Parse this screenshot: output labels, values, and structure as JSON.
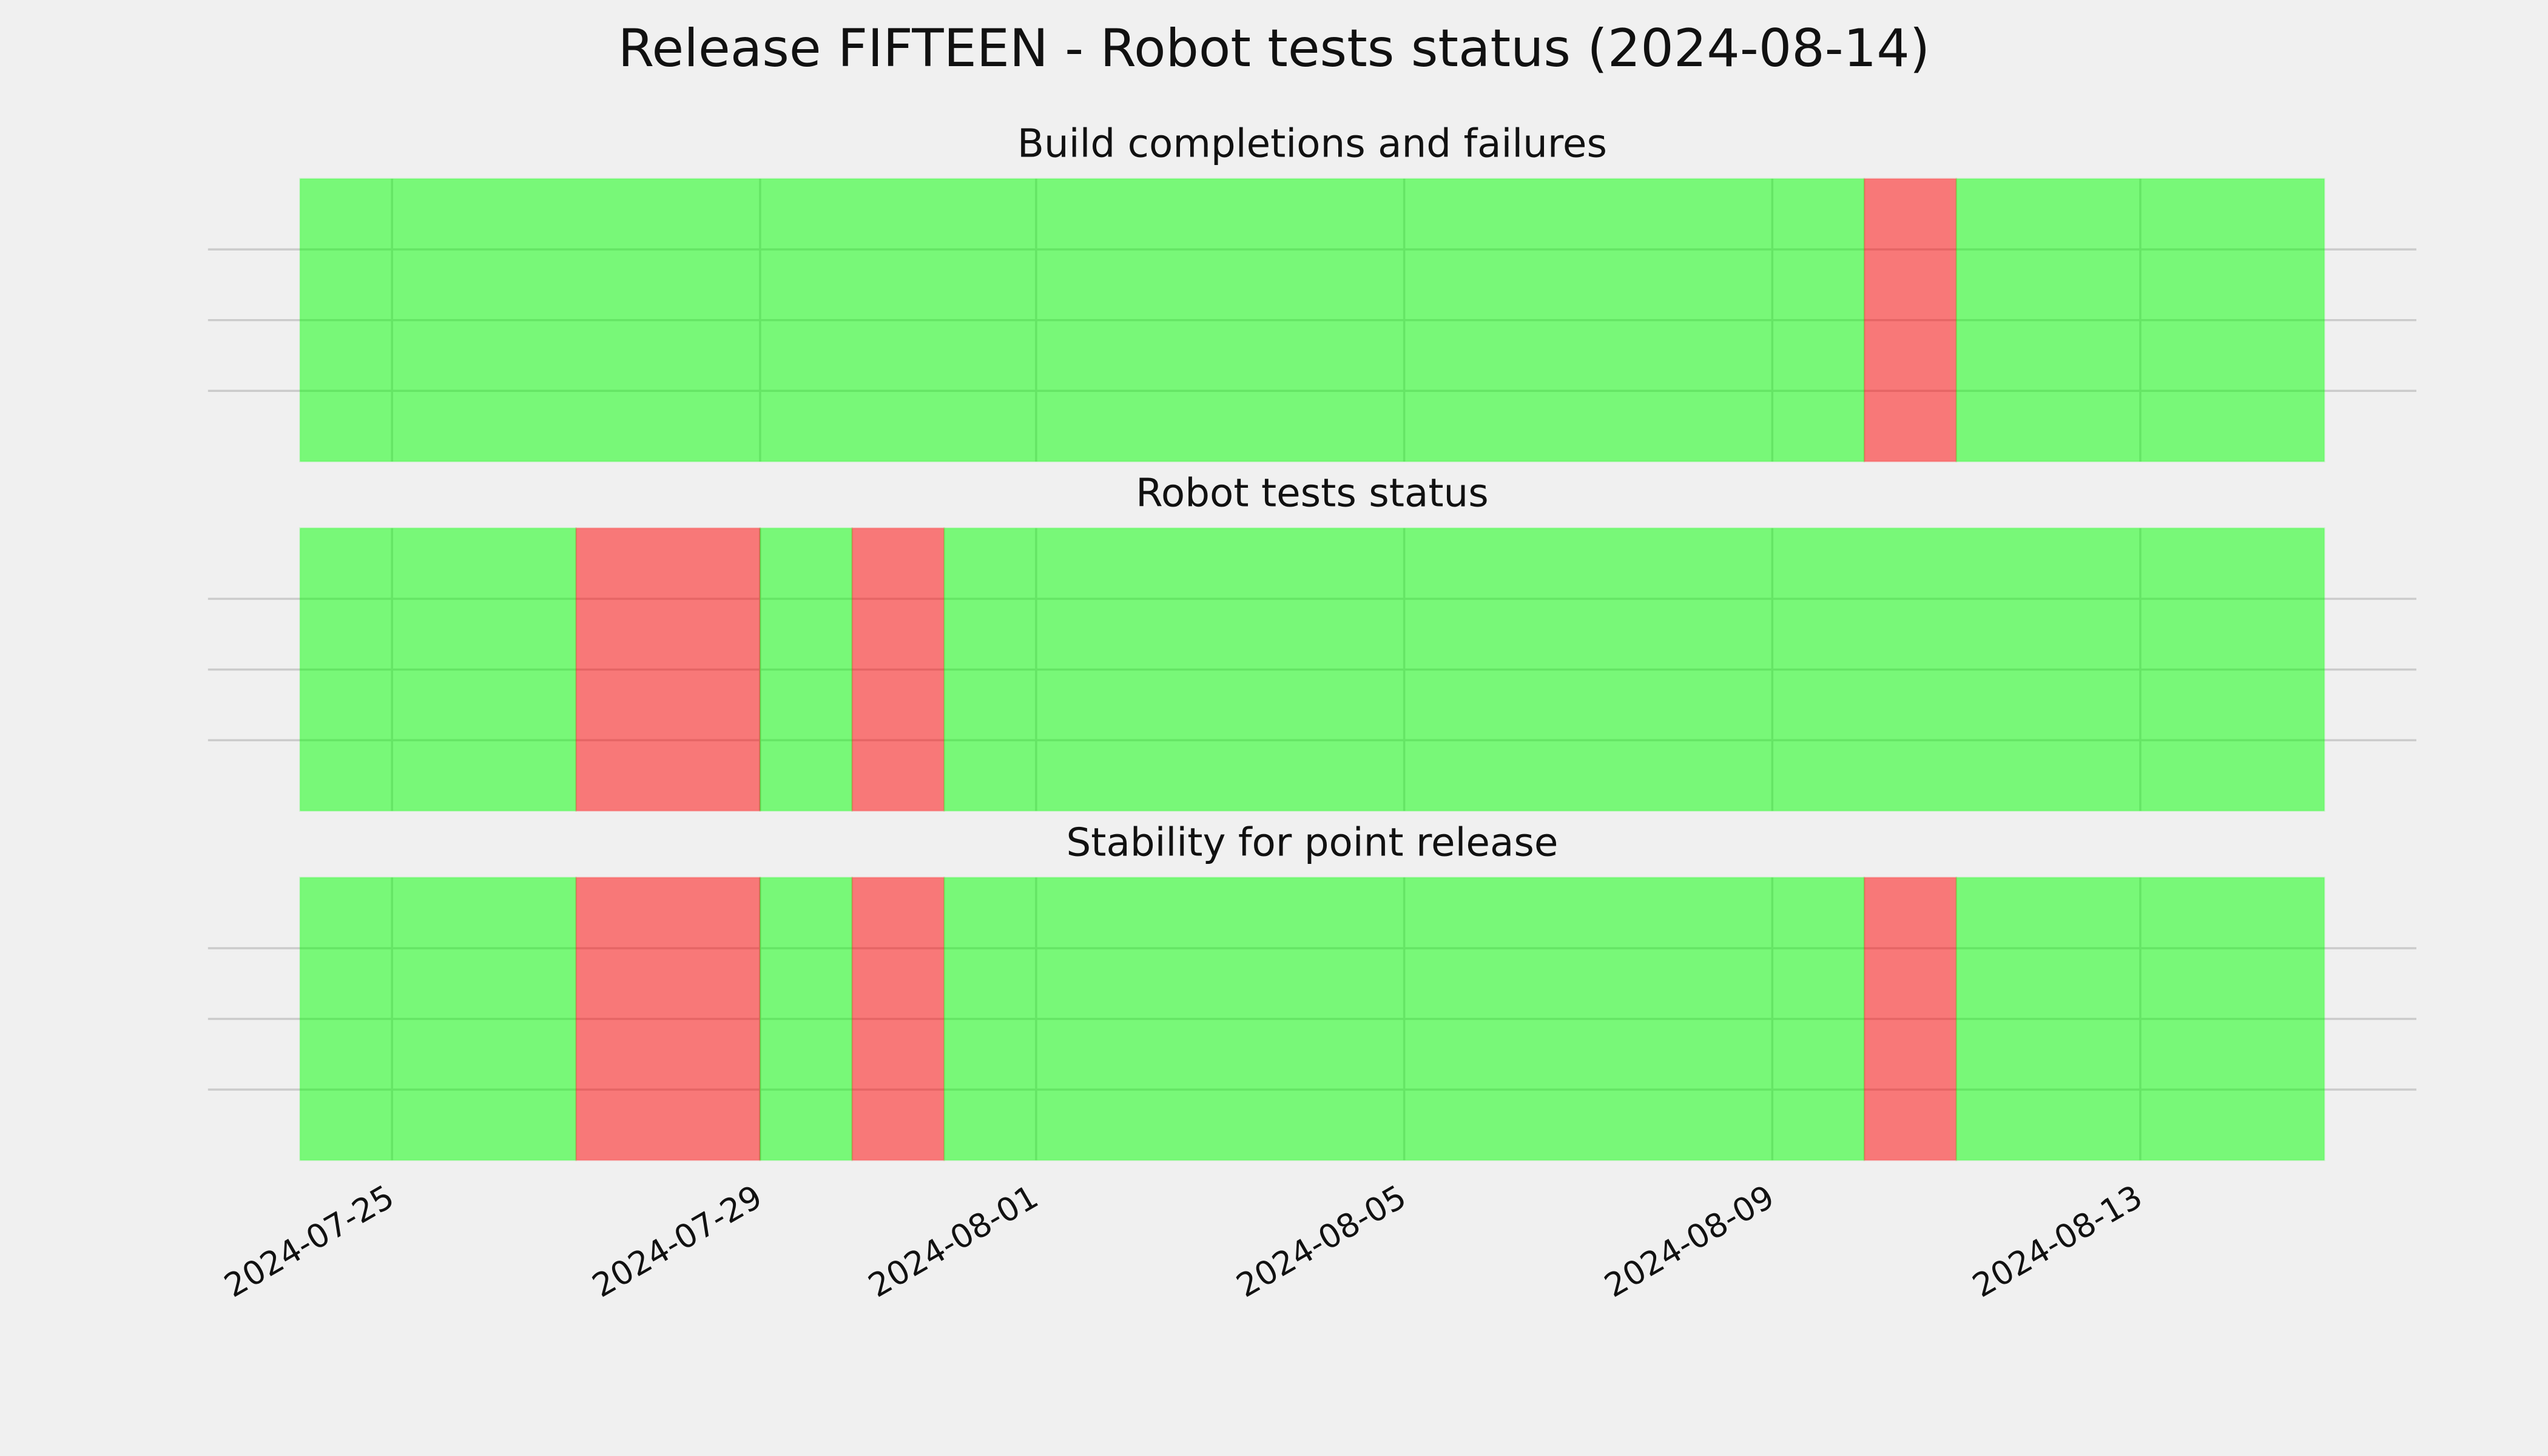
{
  "title": "Release FIFTEEN - Robot tests status (2024-08-14)",
  "chart_data": [
    {
      "type": "timeline",
      "title": "Build completions and failures",
      "alpha": 0.5,
      "grid": true,
      "xlim": [
        "2024-07-23",
        "2024-08-16"
      ],
      "xticks": [
        "2024-07-25",
        "2024-07-29",
        "2024-08-01",
        "2024-08-05",
        "2024-08-09",
        "2024-08-13"
      ],
      "ylim": [
        0,
        1
      ],
      "yticks": [
        0.25,
        0.5,
        0.75
      ],
      "segments": [
        {
          "start": "2024-07-24",
          "end": "2024-08-10",
          "color": "#00ff00"
        },
        {
          "start": "2024-08-10",
          "end": "2024-08-11",
          "color": "#ff0000"
        },
        {
          "start": "2024-08-11",
          "end": "2024-08-15",
          "color": "#00ff00"
        }
      ]
    },
    {
      "type": "timeline",
      "title": "Robot tests status",
      "alpha": 0.5,
      "grid": true,
      "xlim": [
        "2024-07-23",
        "2024-08-16"
      ],
      "xticks": [
        "2024-07-25",
        "2024-07-29",
        "2024-08-01",
        "2024-08-05",
        "2024-08-09",
        "2024-08-13"
      ],
      "ylim": [
        0,
        1
      ],
      "yticks": [
        0.25,
        0.5,
        0.75
      ],
      "segments": [
        {
          "start": "2024-07-24",
          "end": "2024-07-27",
          "color": "#00ff00"
        },
        {
          "start": "2024-07-27",
          "end": "2024-07-29",
          "color": "#ff0000"
        },
        {
          "start": "2024-07-29",
          "end": "2024-07-30",
          "color": "#00ff00"
        },
        {
          "start": "2024-07-30",
          "end": "2024-07-31",
          "color": "#ff0000"
        },
        {
          "start": "2024-07-31",
          "end": "2024-08-15",
          "color": "#00ff00"
        }
      ]
    },
    {
      "type": "timeline",
      "title": "Stability for point release",
      "alpha": 0.5,
      "grid": true,
      "xlim": [
        "2024-07-23",
        "2024-08-16"
      ],
      "xticks": [
        "2024-07-25",
        "2024-07-29",
        "2024-08-01",
        "2024-08-05",
        "2024-08-09",
        "2024-08-13"
      ],
      "ylim": [
        0,
        1
      ],
      "yticks": [
        0.25,
        0.5,
        0.75
      ],
      "segments": [
        {
          "start": "2024-07-24",
          "end": "2024-07-27",
          "color": "#00ff00"
        },
        {
          "start": "2024-07-27",
          "end": "2024-07-29",
          "color": "#ff0000"
        },
        {
          "start": "2024-07-29",
          "end": "2024-07-30",
          "color": "#00ff00"
        },
        {
          "start": "2024-07-30",
          "end": "2024-07-31",
          "color": "#ff0000"
        },
        {
          "start": "2024-07-31",
          "end": "2024-08-10",
          "color": "#00ff00"
        },
        {
          "start": "2024-08-10",
          "end": "2024-08-11",
          "color": "#ff0000"
        },
        {
          "start": "2024-08-11",
          "end": "2024-08-15",
          "color": "#00ff00"
        }
      ]
    }
  ]
}
